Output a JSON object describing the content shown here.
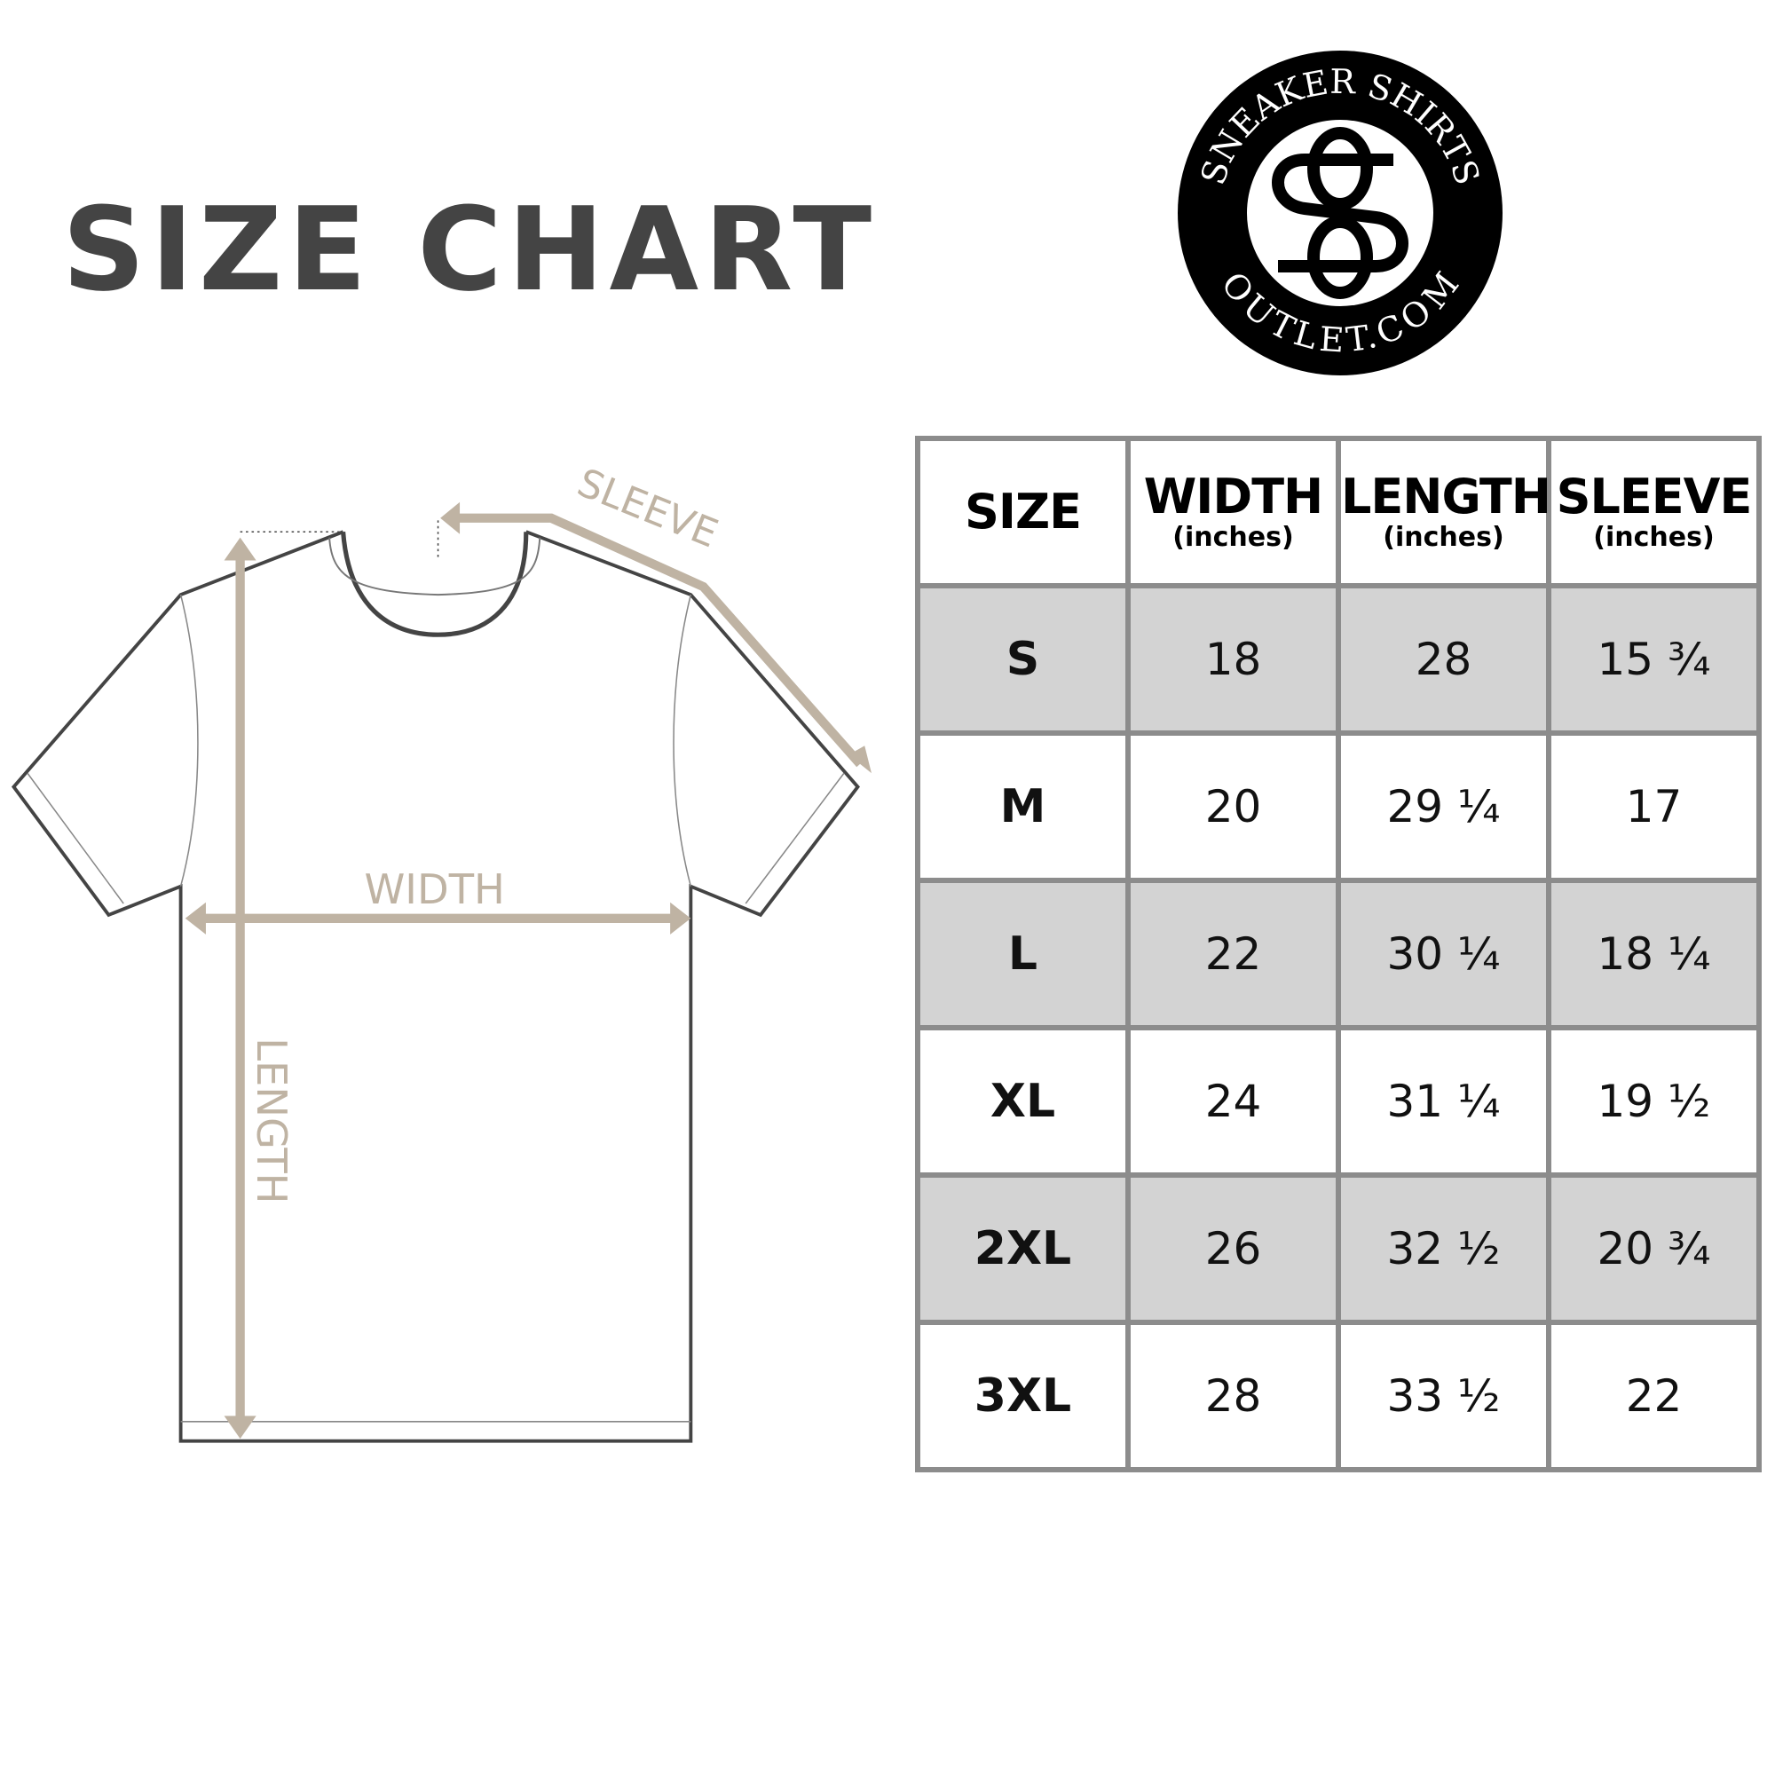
{
  "title": "SIZE CHART",
  "logo": {
    "top_text": "SNEAKER SHIRTS",
    "bottom_text": "OUTLET.COM",
    "monogram": "SO"
  },
  "diagram": {
    "sleeve_label": "SLEEVE",
    "width_label": "WIDTH",
    "length_label": "LENGTH",
    "arrow_color": "#bfb3a3"
  },
  "table": {
    "headers": [
      {
        "main": "SIZE",
        "sub": ""
      },
      {
        "main": "WIDTH",
        "sub": "(inches)"
      },
      {
        "main": "LENGTH",
        "sub": "(inches)"
      },
      {
        "main": "SLEEVE",
        "sub": "(inches)"
      }
    ],
    "rows": [
      [
        "S",
        "18",
        "28",
        "15 ¾"
      ],
      [
        "M",
        "20",
        "29 ¼",
        "17"
      ],
      [
        "L",
        "22",
        "30 ¼",
        "18 ¼"
      ],
      [
        "XL",
        "24",
        "31 ¼",
        "19 ½"
      ],
      [
        "2XL",
        "26",
        "32 ½",
        "20 ¾"
      ],
      [
        "3XL",
        "28",
        "33 ½",
        "22"
      ]
    ],
    "shade_color": "#d3d3d3",
    "border_color": "#8c8c8c"
  }
}
